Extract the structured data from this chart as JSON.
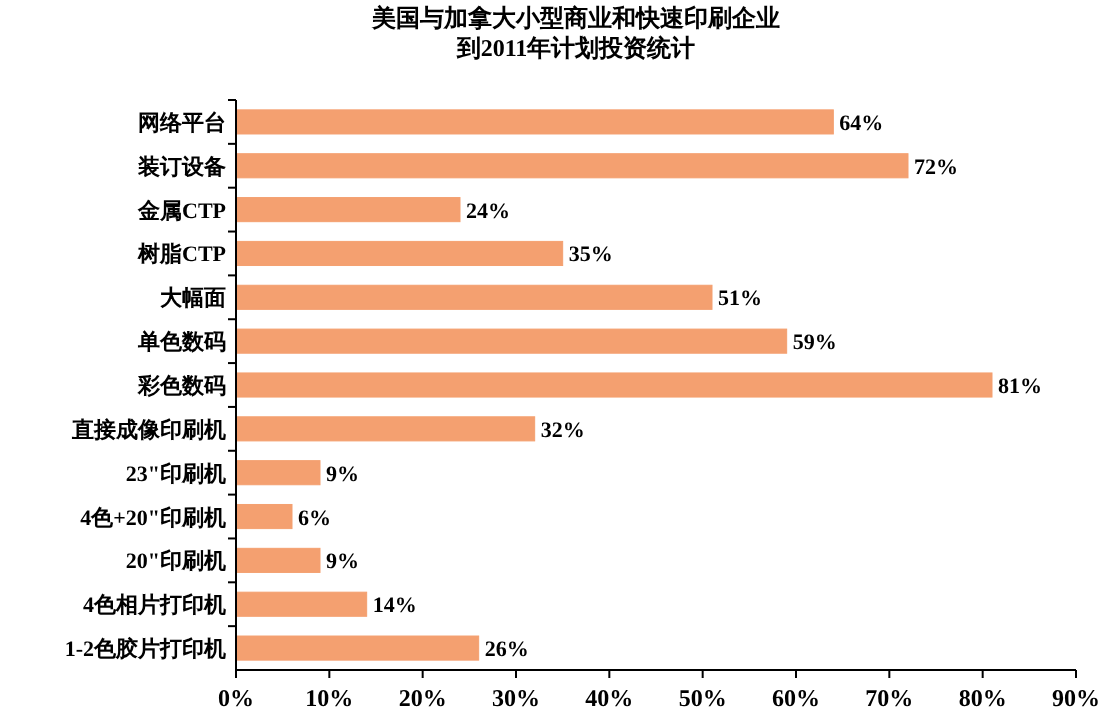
{
  "chart_data": {
    "type": "bar",
    "orientation": "horizontal",
    "title": "美国与加拿大小型商业和快速印刷企业",
    "subtitle": "到2011年计划投资统计",
    "categories": [
      "网络平台",
      "装订设备",
      "金属CTP",
      "树脂CTP",
      "大幅面",
      "单色数码",
      "彩色数码",
      "直接成像印刷机",
      "23\"印刷机",
      "4色+20\"印刷机",
      "20\"印刷机",
      "4色相片打印机",
      "1-2色胶片打印机"
    ],
    "values": [
      64,
      72,
      24,
      35,
      51,
      59,
      81,
      32,
      9,
      6,
      9,
      14,
      26
    ],
    "value_labels": [
      "64%",
      "72%",
      "24%",
      "35%",
      "51%",
      "59%",
      "81%",
      "32%",
      "9%",
      "6%",
      "9%",
      "14%",
      "26%"
    ],
    "color": "#f4a070",
    "xlim": [
      0,
      90
    ],
    "xticks": [
      {
        "value": 0,
        "label": "0%"
      },
      {
        "value": 10,
        "label": "10%"
      },
      {
        "value": 20,
        "label": "20%"
      },
      {
        "value": 30,
        "label": "30%"
      },
      {
        "value": 40,
        "label": "40%"
      },
      {
        "value": 50,
        "label": "50%"
      },
      {
        "value": 60,
        "label": "60%"
      },
      {
        "value": 70,
        "label": "70%"
      },
      {
        "value": 80,
        "label": "80%"
      },
      {
        "value": 90,
        "label": "90%"
      }
    ],
    "grid": false
  }
}
